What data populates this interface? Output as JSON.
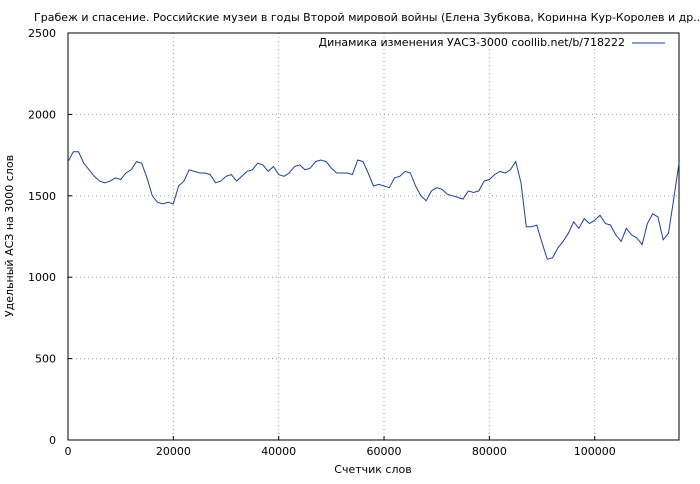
{
  "chart_data": {
    "type": "line",
    "title": "Грабеж и спасение. Российские музеи в годы Второй мировой войны (Елена Зубкова, Коринна Кур-Королев и др...)",
    "xlabel": "Счетчик слов",
    "ylabel": "Удельный АСЗ на 3000 слов",
    "xlim": [
      0,
      116000
    ],
    "ylim": [
      0,
      2500
    ],
    "xticks": [
      0,
      20000,
      40000,
      60000,
      80000,
      100000
    ],
    "xtick_labels": [
      "0",
      "20000",
      "40000",
      "60000",
      "80000",
      "100000"
    ],
    "yticks": [
      0,
      500,
      1000,
      1500,
      2000,
      2500
    ],
    "ytick_labels": [
      "0",
      "500",
      "1000",
      "1500",
      "2000",
      "2500"
    ],
    "grid": true,
    "legend_position": "top-right",
    "series": [
      {
        "name": "Динамика изменения УАСЗ-3000 coollib.net/b/718222",
        "color": "#1f3f9f",
        "x": [
          0,
          1000,
          2000,
          3000,
          4000,
          5000,
          6000,
          7000,
          8000,
          9000,
          10000,
          11000,
          12000,
          13000,
          14000,
          15000,
          16000,
          17000,
          18000,
          19000,
          20000,
          21000,
          22000,
          23000,
          24000,
          25000,
          26000,
          27000,
          28000,
          29000,
          30000,
          31000,
          32000,
          33000,
          34000,
          35000,
          36000,
          37000,
          38000,
          39000,
          40000,
          41000,
          42000,
          43000,
          44000,
          45000,
          46000,
          47000,
          48000,
          49000,
          50000,
          51000,
          52000,
          53000,
          54000,
          55000,
          56000,
          57000,
          58000,
          59000,
          60000,
          61000,
          62000,
          63000,
          64000,
          65000,
          66000,
          67000,
          68000,
          69000,
          70000,
          71000,
          72000,
          73000,
          74000,
          75000,
          76000,
          77000,
          78000,
          79000,
          80000,
          81000,
          82000,
          83000,
          84000,
          85000,
          86000,
          87000,
          88000,
          89000,
          90000,
          91000,
          92000,
          93000,
          94000,
          95000,
          96000,
          97000,
          98000,
          99000,
          100000,
          101000,
          102000,
          103000,
          104000,
          105000,
          106000,
          107000,
          108000,
          109000,
          110000,
          111000,
          112000,
          113000,
          114000,
          115000,
          116000
        ],
        "values": [
          1710,
          1770,
          1770,
          1700,
          1660,
          1620,
          1590,
          1580,
          1590,
          1610,
          1600,
          1640,
          1660,
          1710,
          1700,
          1610,
          1500,
          1460,
          1450,
          1460,
          1450,
          1560,
          1590,
          1660,
          1650,
          1640,
          1640,
          1630,
          1580,
          1590,
          1620,
          1630,
          1590,
          1620,
          1650,
          1660,
          1700,
          1690,
          1650,
          1680,
          1630,
          1620,
          1640,
          1680,
          1690,
          1660,
          1670,
          1710,
          1720,
          1710,
          1670,
          1640,
          1640,
          1640,
          1630,
          1720,
          1710,
          1640,
          1560,
          1570,
          1560,
          1550,
          1610,
          1620,
          1650,
          1640,
          1560,
          1500,
          1470,
          1530,
          1550,
          1540,
          1510,
          1500,
          1490,
          1480,
          1530,
          1520,
          1530,
          1590,
          1600,
          1630,
          1650,
          1640,
          1660,
          1710,
          1580,
          1310,
          1310,
          1320,
          1210,
          1110,
          1120,
          1180,
          1220,
          1270,
          1340,
          1300,
          1360,
          1330,
          1350,
          1380,
          1330,
          1320,
          1260,
          1220,
          1300,
          1260,
          1240,
          1200,
          1330,
          1390,
          1370,
          1230,
          1270,
          1480,
          1700
        ]
      }
    ]
  }
}
